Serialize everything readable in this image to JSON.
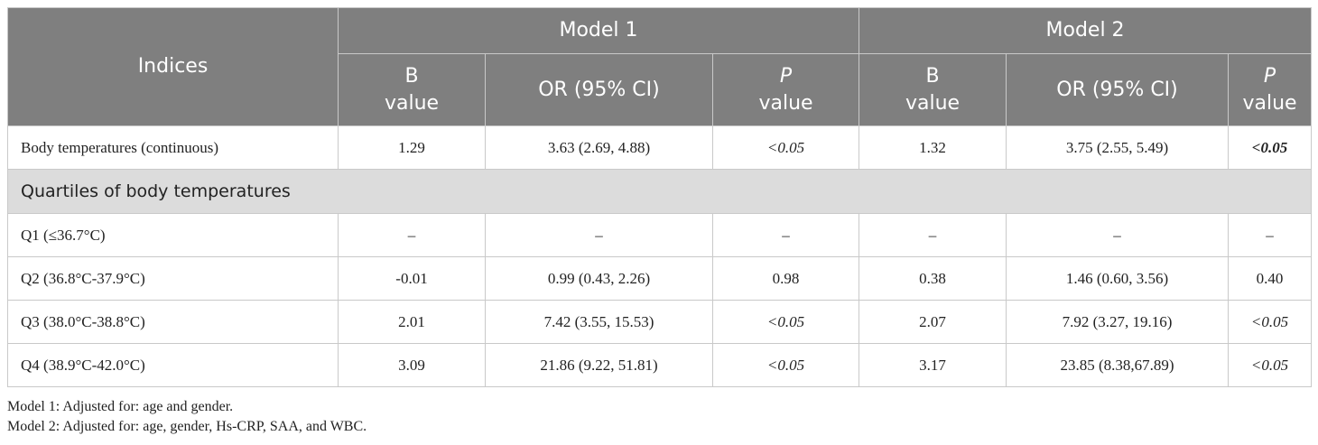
{
  "table": {
    "header": {
      "indices": "Indices",
      "model1": "Model 1",
      "model2": "Model 2",
      "b_line1": "B",
      "b_line2": "value",
      "or_ci": "OR (95% CI)",
      "p_line1": "P",
      "p_line2": "value"
    },
    "rows": [
      {
        "label": "Body temperatures (continuous)",
        "m1_b": "1.29",
        "m1_or": "3.63 (2.69, 4.88)",
        "m1_p": "<0.05",
        "m2_b": "1.32",
        "m2_or": "3.75 (2.55, 5.49)",
        "m2_p": "<0.05"
      },
      {
        "label": "Q1 (≤36.7°C)",
        "m1_b": "–",
        "m1_or": "–",
        "m1_p": "–",
        "m2_b": "–",
        "m2_or": "–",
        "m2_p": "–"
      },
      {
        "label": "Q2 (36.8°C-37.9°C)",
        "m1_b": "-0.01",
        "m1_or": "0.99 (0.43, 2.26)",
        "m1_p": "0.98",
        "m2_b": "0.38",
        "m2_or": "1.46 (0.60, 3.56)",
        "m2_p": "0.40"
      },
      {
        "label": "Q3 (38.0°C-38.8°C)",
        "m1_b": "2.01",
        "m1_or": "7.42 (3.55, 15.53)",
        "m1_p": "<0.05",
        "m2_b": "2.07",
        "m2_or": "7.92 (3.27, 19.16)",
        "m2_p": "<0.05"
      },
      {
        "label": "Q4 (38.9°C-42.0°C)",
        "m1_b": "3.09",
        "m1_or": "21.86 (9.22, 51.81)",
        "m1_p": "<0.05",
        "m2_b": "3.17",
        "m2_or": "23.85 (8.38,67.89)",
        "m2_p": "<0.05"
      }
    ],
    "section_label": "Quartiles of body temperatures"
  },
  "notes": [
    "Model 1: Adjusted for: age and gender.",
    "Model 2: Adjusted for: age, gender, Hs-CRP, SAA, and WBC."
  ]
}
